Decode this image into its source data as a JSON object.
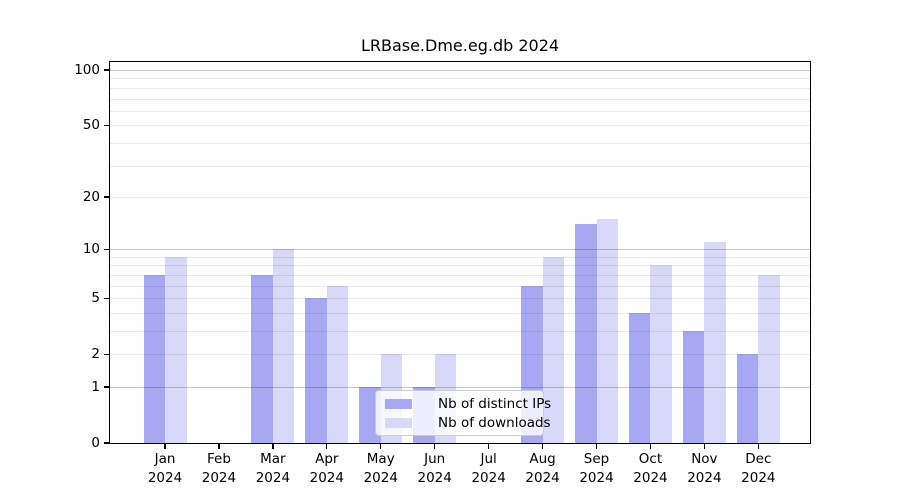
{
  "title": "LRBase.Dme.eg.db 2024",
  "chart_data": {
    "type": "bar",
    "title": "LRBase.Dme.eg.db 2024",
    "months": [
      "Jan",
      "Feb",
      "Mar",
      "Apr",
      "May",
      "Jun",
      "Jul",
      "Aug",
      "Sep",
      "Oct",
      "Nov",
      "Dec"
    ],
    "year_label": "2024",
    "series": [
      {
        "name": "Nb of distinct IPs",
        "color": "#a8a8f2",
        "values": [
          7,
          0,
          7,
          5,
          1,
          1,
          0,
          6,
          14,
          4,
          3,
          2
        ]
      },
      {
        "name": "Nb of downloads",
        "color": "#d8d8f8",
        "values": [
          9,
          0,
          10,
          6,
          2,
          2,
          0,
          9,
          15,
          8,
          11,
          7
        ]
      }
    ],
    "yscale": "log10(1+value)",
    "y_tick_values": [
      0,
      1,
      2,
      5,
      10,
      20,
      50,
      100
    ],
    "y_tick_labels": [
      "0",
      "1",
      "2",
      "5",
      "10",
      "20",
      "50",
      "100"
    ],
    "major_gridline_values": [
      1,
      10,
      100
    ],
    "minor_gridline_values": [
      2,
      3,
      4,
      5,
      6,
      7,
      8,
      9,
      20,
      30,
      40,
      50,
      60,
      70,
      80,
      90
    ],
    "ylim": [
      0,
      110.6
    ],
    "grid": true,
    "legend_position": "lower center",
    "colors": {
      "major_grid": "#c8c8c8",
      "minor_grid": "#eaeaea",
      "axis": "#000000",
      "background": "#ffffff"
    }
  }
}
